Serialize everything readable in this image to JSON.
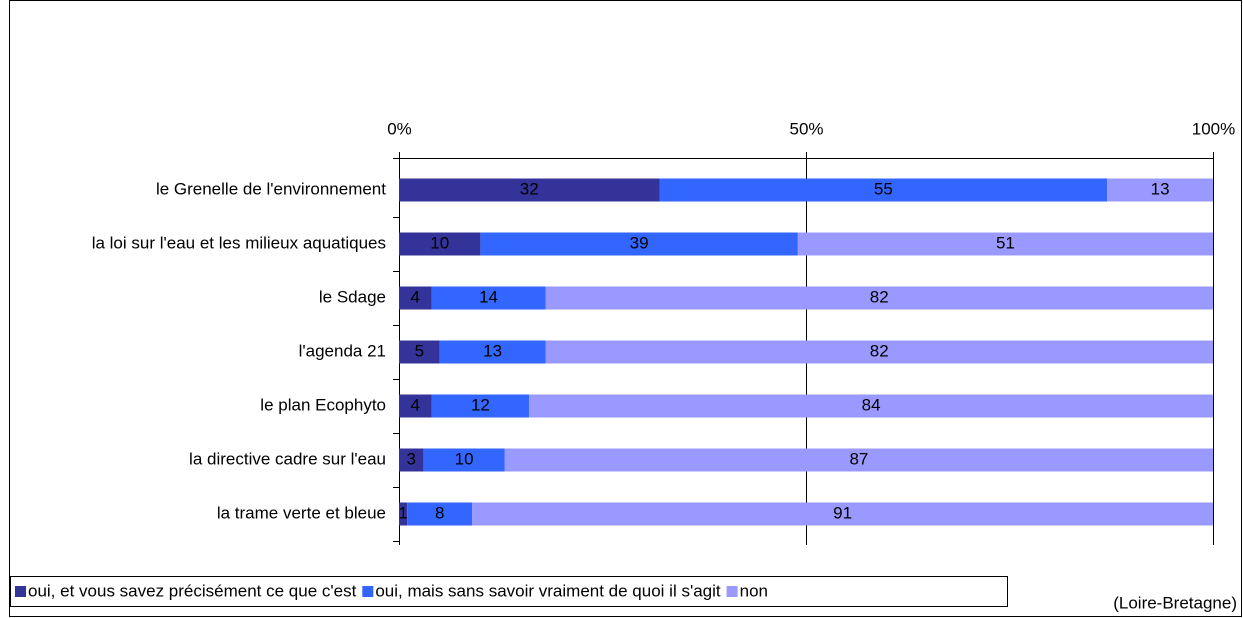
{
  "chart_data": {
    "type": "stacked-barh",
    "categories": [
      "le Grenelle de l'environnement",
      "la loi sur l'eau et les milieux aquatiques",
      "le Sdage",
      "l'agenda 21",
      "le plan Ecophyto",
      "la directive cadre sur l'eau",
      "la trame verte et bleue"
    ],
    "series": [
      {
        "name": "oui, et vous savez précisément ce que c'est",
        "color": "#333399",
        "label_color": "#ffffff",
        "values": [
          32,
          10,
          4,
          5,
          4,
          3,
          1
        ]
      },
      {
        "name": "oui, mais sans savoir vraiment de quoi il s'agit",
        "color": "#3366ff",
        "label_color": "#ffffff",
        "values": [
          55,
          39,
          14,
          13,
          12,
          10,
          8
        ]
      },
      {
        "name": "non",
        "color": "#9999ff",
        "label_color": "#000000",
        "values": [
          13,
          51,
          82,
          82,
          84,
          87,
          91
        ]
      }
    ],
    "xlim": [
      0,
      100
    ],
    "xticks": [
      {
        "value": 0,
        "label": "0%"
      },
      {
        "value": 50,
        "label": "50%"
      },
      {
        "value": 100,
        "label": "100%"
      }
    ],
    "grid": true,
    "legend": "bottom",
    "note": "(Loire-Bretagne)"
  }
}
